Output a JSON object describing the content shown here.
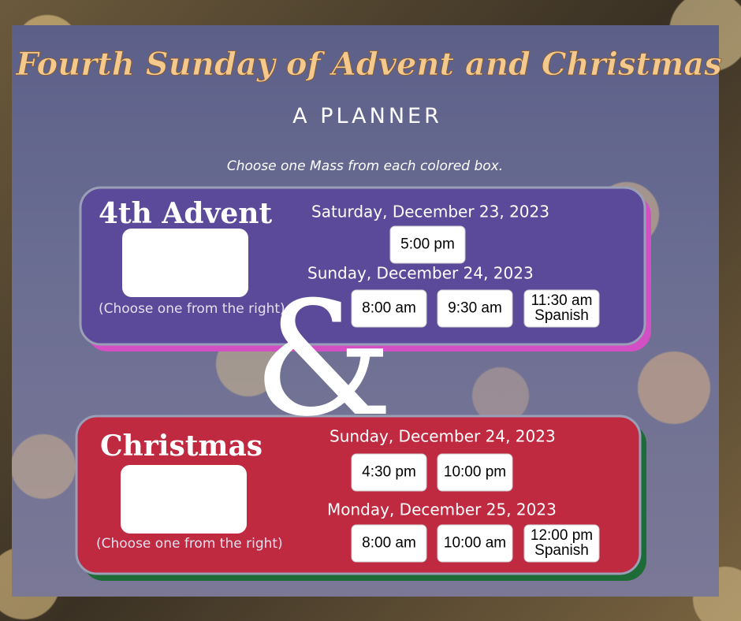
{
  "header": {
    "title": "Fourth Sunday of Advent and Christmas",
    "subtitle": "A PLANNER"
  },
  "instruction": "Choose one Mass from each colored box.",
  "ampersand": "&",
  "sections": [
    {
      "title": "4th Advent",
      "caption": "(Choose one from the right)",
      "days": [
        {
          "date": "Saturday, December 23, 2023",
          "times": [
            {
              "lines": [
                "5:00 pm"
              ]
            }
          ]
        },
        {
          "date": "Sunday, December 24, 2023",
          "times": [
            {
              "lines": [
                "8:00 am"
              ]
            },
            {
              "lines": [
                "9:30 am"
              ]
            },
            {
              "lines": [
                "11:30 am",
                "Spanish"
              ]
            }
          ]
        }
      ]
    },
    {
      "title": "Christmas",
      "caption": "(Choose one from the right)",
      "days": [
        {
          "date": "Sunday, December 24, 2023",
          "times": [
            {
              "lines": [
                "4:30 pm"
              ]
            },
            {
              "lines": [
                "10:00 pm"
              ]
            }
          ]
        },
        {
          "date": "Monday, December 25, 2023",
          "times": [
            {
              "lines": [
                "8:00 am"
              ]
            },
            {
              "lines": [
                "10:00 am"
              ]
            },
            {
              "lines": [
                "12:00 pm",
                "Spanish"
              ]
            }
          ]
        }
      ]
    }
  ]
}
